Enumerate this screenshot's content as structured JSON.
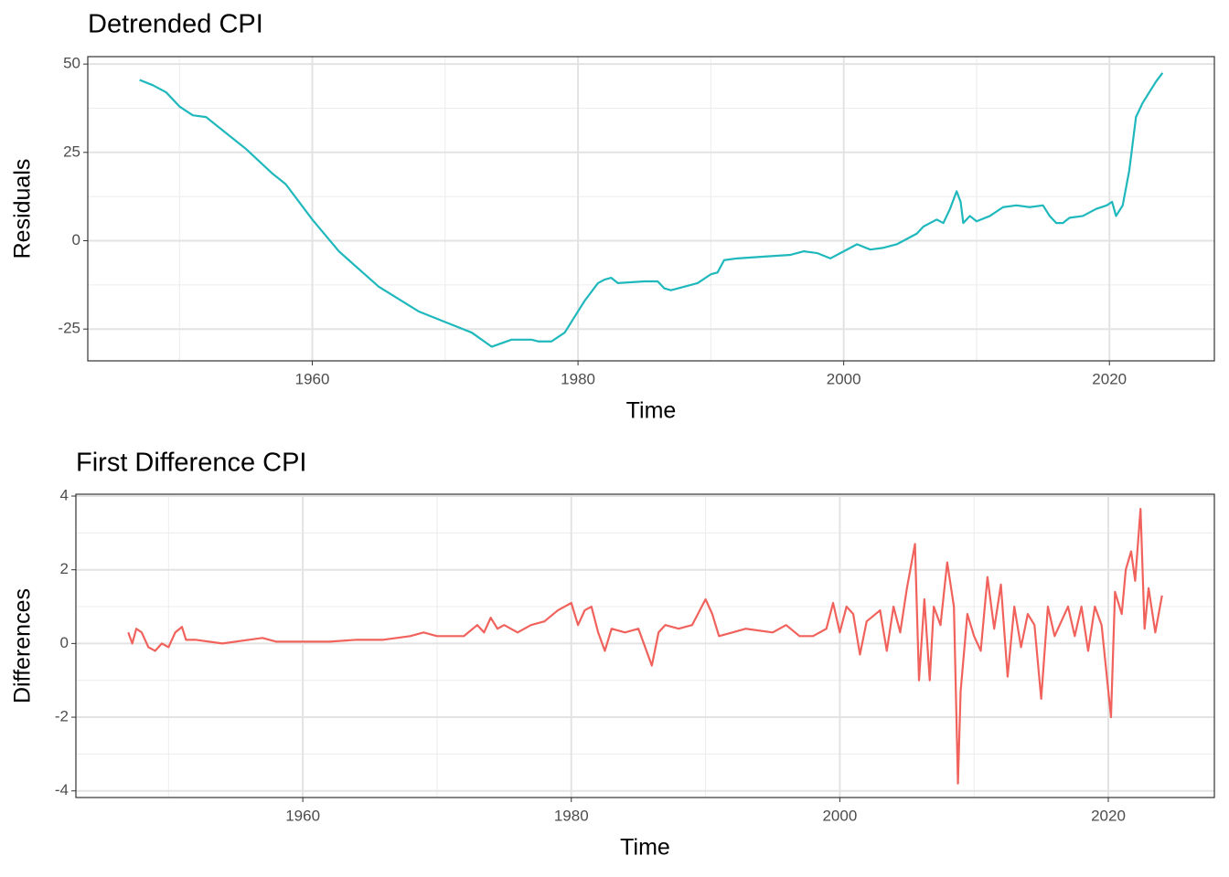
{
  "chart_data": [
    {
      "type": "line",
      "title": "Detrended CPI",
      "x_label": "Time",
      "y_label": "Residuals",
      "xlim": [
        1943.1,
        2027.9
      ],
      "xticks": [
        1960,
        1980,
        2000,
        2020
      ],
      "x_minor_ticks": [
        1950,
        1970,
        1990,
        2010
      ],
      "ylim": [
        -34,
        52.1
      ],
      "yticks": [
        -25,
        0,
        25,
        50
      ],
      "y_minor_ticks": [
        -12.5,
        12.5,
        37.5
      ],
      "grid": true,
      "series": [
        {
          "name": "Residuals",
          "color": "#1fb8bc",
          "x": [
            1947.0,
            1948,
            1949,
            1950,
            1951,
            1952,
            1953,
            1955,
            1957,
            1958,
            1960,
            1962,
            1965,
            1968,
            1970,
            1972,
            1973.5,
            1975,
            1976.5,
            1977,
            1978,
            1979,
            1980,
            1980.5,
            1981.5,
            1982,
            1982.5,
            1983,
            1985,
            1986,
            1986.5,
            1987,
            1988,
            1989,
            1990,
            1990.5,
            1991,
            1992,
            1994,
            1996,
            1997,
            1998,
            1999,
            2000,
            2001,
            2002,
            2003,
            2004,
            2005,
            2005.5,
            2006,
            2007,
            2007.5,
            2008,
            2008.5,
            2008.8,
            2009,
            2009.5,
            2010,
            2011,
            2012,
            2013,
            2014,
            2015,
            2015.5,
            2016,
            2016.5,
            2017,
            2018,
            2019,
            2019.8,
            2020.2,
            2020.5,
            2021,
            2021.5,
            2022,
            2022.5,
            2023,
            2023.5,
            2024
          ],
          "values": [
            45.5,
            44,
            42,
            38,
            35.5,
            35,
            32,
            26,
            19,
            16,
            6,
            -3,
            -13,
            -20,
            -23,
            -26,
            -30,
            -28,
            -28,
            -28.5,
            -28.5,
            -26,
            -20,
            -17,
            -12,
            -11,
            -10.5,
            -12,
            -11.5,
            -11.5,
            -13.5,
            -14,
            -13,
            -12,
            -9.5,
            -9,
            -5.5,
            -5,
            -4.5,
            -4,
            -3,
            -3.5,
            -5,
            -3,
            -1,
            -2.5,
            -2,
            -1,
            1,
            2,
            4,
            6,
            5,
            9,
            14,
            11,
            5,
            7,
            5.5,
            7,
            9.5,
            10,
            9.5,
            10,
            7,
            5,
            5,
            6.5,
            7,
            9,
            10,
            11,
            7,
            10,
            20,
            35,
            39,
            42,
            45,
            47.5
          ]
        }
      ]
    },
    {
      "type": "line",
      "title": "First Difference CPI",
      "x_label": "Time",
      "y_label": "Differences",
      "xlim": [
        1943.1,
        2027.9
      ],
      "xticks": [
        1960,
        1980,
        2000,
        2020
      ],
      "x_minor_ticks": [
        1950,
        1970,
        1990,
        2010
      ],
      "ylim": [
        -4.18,
        4.05
      ],
      "yticks": [
        -4,
        -2,
        0,
        2,
        4
      ],
      "y_minor_ticks": [
        -3,
        -1,
        1,
        3
      ],
      "grid": true,
      "series": [
        {
          "name": "Differences",
          "color": "#f0625b",
          "x": [
            1947.0,
            1947.3,
            1947.6,
            1948,
            1948.5,
            1949,
            1949.5,
            1950,
            1950.5,
            1951,
            1951.3,
            1952,
            1954,
            1956,
            1957,
            1958,
            1960,
            1962,
            1964,
            1966,
            1967,
            1968,
            1969,
            1970,
            1971,
            1972,
            1973,
            1973.5,
            1974,
            1974.5,
            1975,
            1976,
            1977,
            1978,
            1979,
            1980,
            1980.5,
            1981,
            1981.5,
            1982,
            1982.5,
            1983,
            1984,
            1985,
            1986,
            1986.5,
            1987,
            1988,
            1989,
            1990,
            1990.5,
            1991,
            1992,
            1993,
            1995,
            1996,
            1997,
            1998,
            1999,
            1999.5,
            2000,
            2000.5,
            2001,
            2001.5,
            2002,
            2003,
            2003.5,
            2004,
            2004.5,
            2005,
            2005.6,
            2005.9,
            2006.3,
            2006.7,
            2007,
            2007.5,
            2008,
            2008.5,
            2008.8,
            2009,
            2009.5,
            2010,
            2010.5,
            2011,
            2011.5,
            2012,
            2012.5,
            2013,
            2013.5,
            2014,
            2014.5,
            2015,
            2015.5,
            2016,
            2017,
            2017.5,
            2018,
            2018.5,
            2019,
            2019.5,
            2020.2,
            2020.5,
            2021,
            2021.3,
            2021.7,
            2022,
            2022.4,
            2022.7,
            2023,
            2023.5,
            2024
          ],
          "values": [
            0.3,
            0,
            0.4,
            0.3,
            -0.1,
            -0.2,
            0,
            -0.1,
            0.3,
            0.45,
            0.1,
            0.1,
            0,
            0.1,
            0.15,
            0.05,
            0.05,
            0.05,
            0.1,
            0.1,
            0.15,
            0.2,
            0.3,
            0.2,
            0.2,
            0.2,
            0.5,
            0.3,
            0.7,
            0.4,
            0.5,
            0.3,
            0.5,
            0.6,
            0.9,
            1.1,
            0.5,
            0.9,
            1.0,
            0.3,
            -0.2,
            0.4,
            0.3,
            0.4,
            -0.6,
            0.3,
            0.5,
            0.4,
            0.5,
            1.2,
            0.8,
            0.2,
            0.3,
            0.4,
            0.3,
            0.5,
            0.2,
            0.2,
            0.4,
            1.1,
            0.3,
            1.0,
            0.8,
            -0.3,
            0.6,
            0.9,
            -0.2,
            1.0,
            0.3,
            1.5,
            2.7,
            -1.0,
            1.2,
            -1.0,
            1.0,
            0.5,
            2.2,
            1.0,
            -3.8,
            -1.3,
            0.8,
            0.2,
            -0.2,
            1.8,
            0.4,
            1.6,
            -0.9,
            1.0,
            -0.1,
            0.8,
            0.5,
            -1.5,
            1.0,
            0.2,
            1.0,
            0.2,
            1.0,
            -0.2,
            1.0,
            0.5,
            -2.0,
            1.4,
            0.8,
            2.0,
            2.5,
            1.7,
            3.65,
            0.4,
            1.5,
            0.3,
            1.3
          ]
        }
      ]
    }
  ]
}
